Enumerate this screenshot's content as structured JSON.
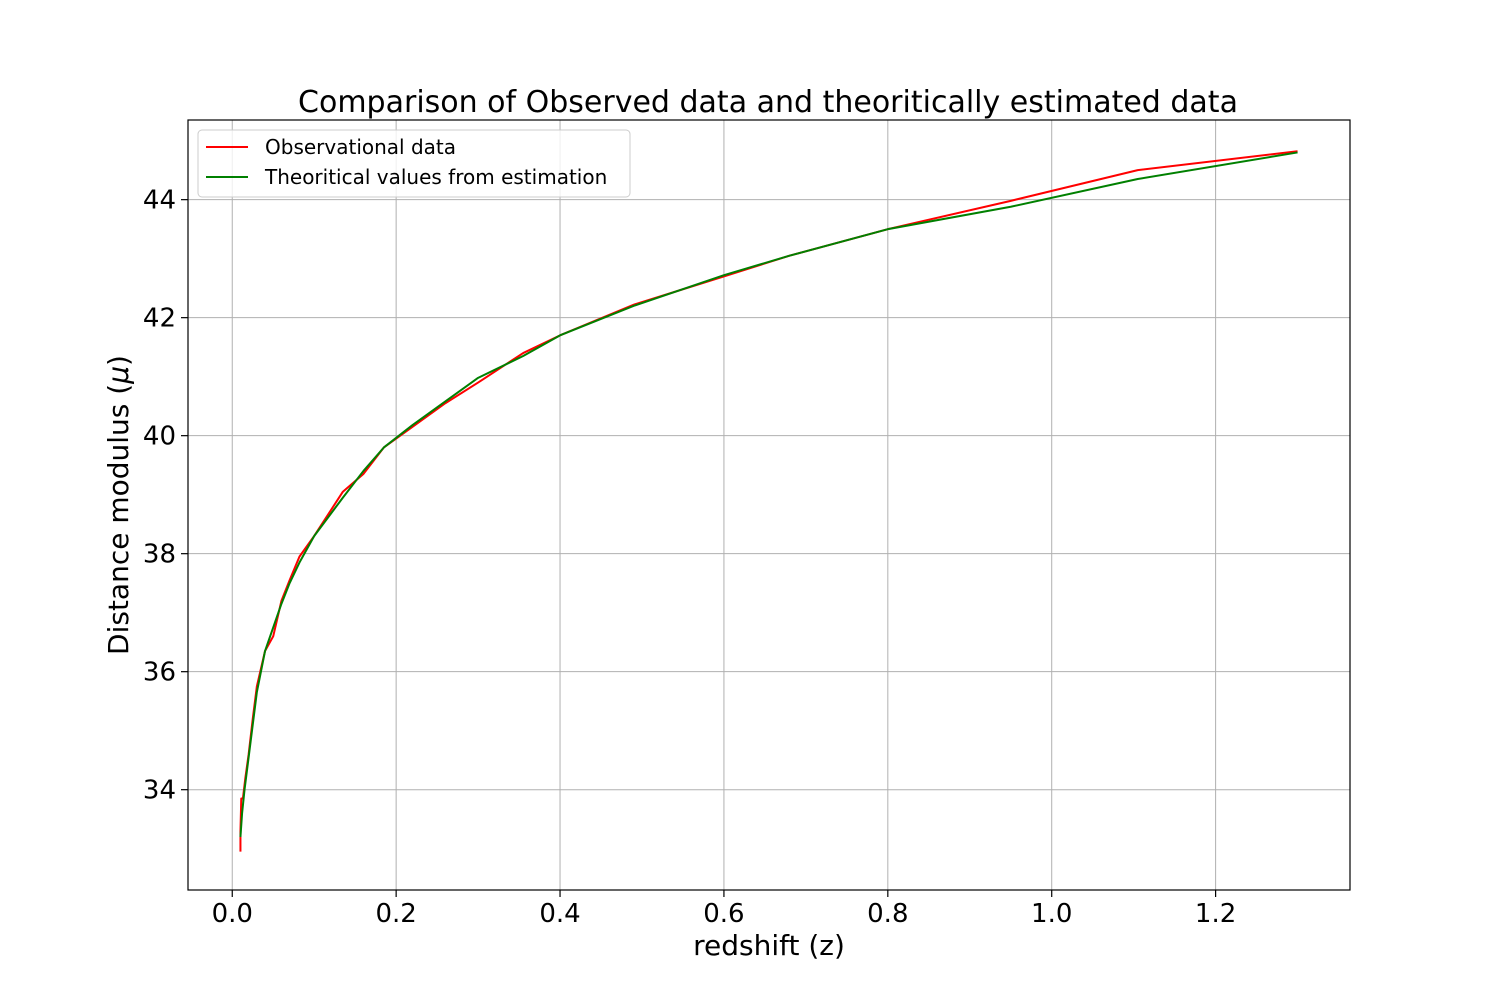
{
  "chart_data": {
    "type": "line",
    "title": "Comparison of Observed data and theoritically estimated data",
    "xlabel": "redshift (z)",
    "ylabel": "Distance modulus (",
    "ylabel_symbol": "μ",
    "ylabel_close": ")",
    "xlim": [
      -0.054,
      1.364
    ],
    "ylim": [
      32.3,
      45.35
    ],
    "xticks": [
      0.0,
      0.2,
      0.4,
      0.6,
      0.8,
      1.0,
      1.2
    ],
    "xtick_labels": [
      "0.0",
      "0.2",
      "0.4",
      "0.6",
      "0.8",
      "1.0",
      "1.2"
    ],
    "yticks": [
      34,
      36,
      38,
      40,
      42,
      44
    ],
    "ytick_labels": [
      "34",
      "36",
      "38",
      "40",
      "42",
      "44"
    ],
    "grid": true,
    "legend_position": "top-left",
    "series": [
      {
        "name": "Observational data",
        "color": "#ff0000",
        "points": [
          [
            0.01,
            32.95
          ],
          [
            0.01,
            33.3
          ],
          [
            0.011,
            33.85
          ],
          [
            0.013,
            33.85
          ],
          [
            0.016,
            34.2
          ],
          [
            0.02,
            34.6
          ],
          [
            0.025,
            35.2
          ],
          [
            0.03,
            35.75
          ],
          [
            0.04,
            36.35
          ],
          [
            0.05,
            36.6
          ],
          [
            0.06,
            37.2
          ],
          [
            0.07,
            37.55
          ],
          [
            0.082,
            37.95
          ],
          [
            0.1,
            38.3
          ],
          [
            0.135,
            39.05
          ],
          [
            0.16,
            39.35
          ],
          [
            0.185,
            39.8
          ],
          [
            0.22,
            40.15
          ],
          [
            0.26,
            40.55
          ],
          [
            0.3,
            40.9
          ],
          [
            0.355,
            41.4
          ],
          [
            0.4,
            41.7
          ],
          [
            0.49,
            42.22
          ],
          [
            0.6,
            42.7
          ],
          [
            0.68,
            43.05
          ],
          [
            0.8,
            43.5
          ],
          [
            0.95,
            43.98
          ],
          [
            1.105,
            44.5
          ],
          [
            1.3,
            44.82
          ]
        ]
      },
      {
        "name": "Theoritical values from estimation",
        "color": "#008000",
        "points": [
          [
            0.01,
            33.2
          ],
          [
            0.012,
            33.6
          ],
          [
            0.015,
            34.0
          ],
          [
            0.02,
            34.55
          ],
          [
            0.025,
            35.1
          ],
          [
            0.03,
            35.65
          ],
          [
            0.04,
            36.35
          ],
          [
            0.05,
            36.75
          ],
          [
            0.06,
            37.15
          ],
          [
            0.07,
            37.5
          ],
          [
            0.082,
            37.85
          ],
          [
            0.1,
            38.3
          ],
          [
            0.135,
            38.95
          ],
          [
            0.16,
            39.4
          ],
          [
            0.185,
            39.8
          ],
          [
            0.22,
            40.18
          ],
          [
            0.26,
            40.58
          ],
          [
            0.3,
            40.98
          ],
          [
            0.355,
            41.35
          ],
          [
            0.4,
            41.7
          ],
          [
            0.49,
            42.2
          ],
          [
            0.6,
            42.72
          ],
          [
            0.68,
            43.05
          ],
          [
            0.8,
            43.5
          ],
          [
            0.95,
            43.88
          ],
          [
            1.105,
            44.35
          ],
          [
            1.3,
            44.8
          ]
        ]
      }
    ]
  }
}
